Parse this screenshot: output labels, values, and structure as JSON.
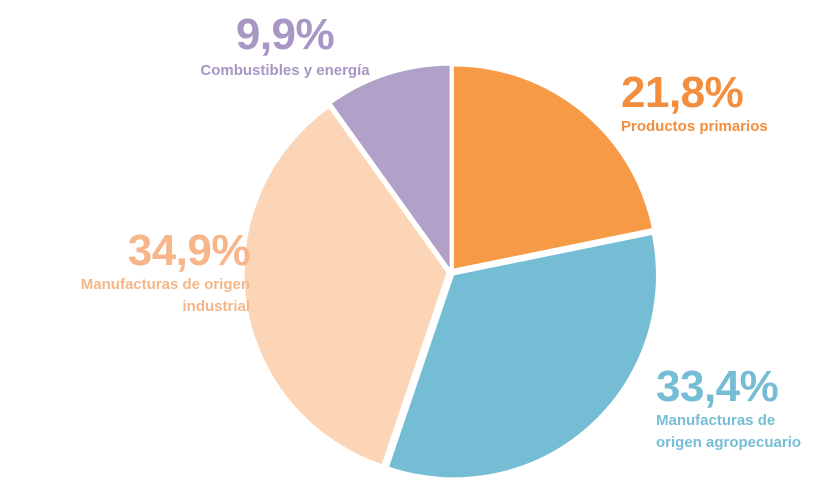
{
  "chart_data": {
    "type": "pie",
    "title": "",
    "slices": [
      {
        "label": "Productos primarios",
        "value": 21.8,
        "display": "21,8%",
        "color": "#F79A46"
      },
      {
        "label": "Manufacturas de origen agropecuario",
        "value": 33.4,
        "display": "33,4%",
        "color": "#75BDD5"
      },
      {
        "label": "Manufacturas de origen industrial",
        "value": 34.9,
        "display": "34,9%",
        "color": "#FBD5B5"
      },
      {
        "label": "Combustibles y energía",
        "value": 9.9,
        "display": "9,9%",
        "color": "#B1A1C8"
      }
    ],
    "label_lines": {
      "agro": [
        "Manufacturas de",
        "origen agropecuario"
      ],
      "ind": [
        "Manufacturas de origen",
        "industrial"
      ]
    },
    "label_colors": {
      "prim": "#F28E3D",
      "agro": "#75BDD5",
      "ind": "#F6B68A",
      "comb": "#A896C4"
    },
    "start_angle_deg": 0,
    "direction": "clockwise"
  }
}
